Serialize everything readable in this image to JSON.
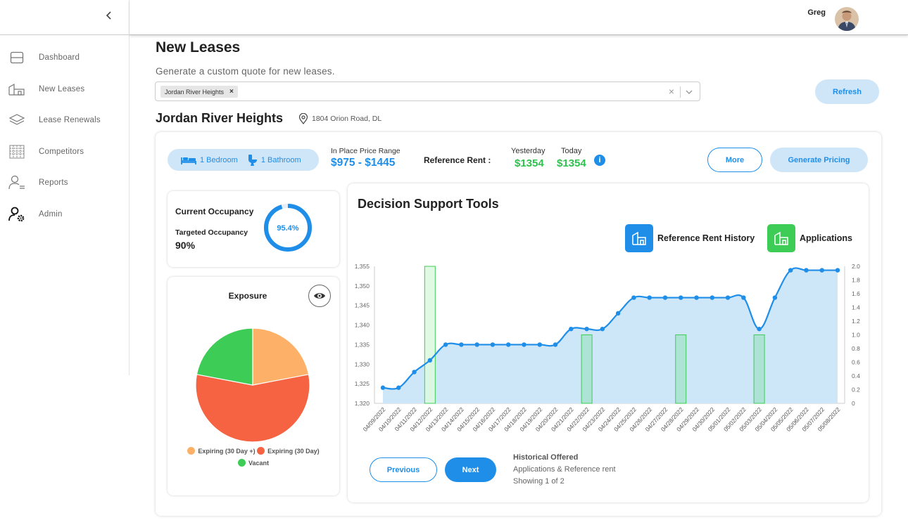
{
  "user": {
    "name": "Greg"
  },
  "sidebar": {
    "items": [
      {
        "label": "Dashboard",
        "icon": "dashboard-icon"
      },
      {
        "label": "New Leases",
        "icon": "building-icon"
      },
      {
        "label": "Lease Renewals",
        "icon": "layers-icon"
      },
      {
        "label": "Competitors",
        "icon": "grid-building-icon"
      },
      {
        "label": "Reports",
        "icon": "user-report-icon"
      },
      {
        "label": "Admin",
        "icon": "user-gear-icon"
      }
    ]
  },
  "header": {
    "title": "New Leases",
    "subtitle": "Generate a custom quote for new leases.",
    "selected_property": "Jordan River Heights",
    "refresh_label": "Refresh"
  },
  "property": {
    "name": "Jordan River Heights",
    "address": "1804 Orion Road, DL"
  },
  "summary": {
    "bedroom_label": "1 Bedroom",
    "bathroom_label": "1 Bathroom",
    "in_place_label": "In Place Price Range",
    "in_place_value": "$975 - $1445",
    "reference_rent_label": "Reference Rent :",
    "yesterday_label": "Yesterday",
    "today_label": "Today",
    "yesterday_value": "$1354",
    "today_value": "$1354",
    "info_glyph": "i",
    "more_label": "More",
    "generate_label": "Generate Pricing"
  },
  "occupancy": {
    "title": "Current Occupancy",
    "targeted_label": "Targeted Occupancy",
    "targeted_value": "90%",
    "current_value": "95.4%",
    "current_fraction": 0.954
  },
  "exposure": {
    "title": "Exposure",
    "legend": [
      {
        "label": "Expiring (30 Day +)",
        "color": "#fdb168"
      },
      {
        "label": "Expiring (30 Day)",
        "color": "#f56342"
      },
      {
        "label": "Vacant",
        "color": "#3dcc55"
      }
    ],
    "slices": [
      {
        "label": "Expiring (30 Day +)",
        "value": 22,
        "color": "#fdb168"
      },
      {
        "label": "Expiring (30 Day)",
        "value": 56,
        "color": "#f56342"
      },
      {
        "label": "Vacant",
        "value": 22,
        "color": "#3dcc55"
      }
    ]
  },
  "decision": {
    "title": "Decision Support Tools",
    "legend_rent": "Reference Rent History",
    "legend_apps": "Applications",
    "prev_label": "Previous",
    "next_label": "Next",
    "hist_title": "Historical Offered",
    "hist_sub": "Applications & Reference rent",
    "hist_page": "Showing 1 of 2"
  },
  "chart_data": {
    "type": "area",
    "title": "Decision Support Tools",
    "x": [
      "04/09/2022",
      "04/10/2022",
      "04/11/2022",
      "04/12/2022",
      "04/13/2022",
      "04/14/2022",
      "04/15/2022",
      "04/16/2022",
      "04/17/2022",
      "04/18/2022",
      "04/19/2022",
      "04/20/2022",
      "04/21/2022",
      "04/22/2022",
      "04/23/2022",
      "04/24/2022",
      "04/25/2022",
      "04/26/2022",
      "04/27/2022",
      "04/28/2022",
      "04/29/2022",
      "04/30/2022",
      "05/01/2022",
      "05/02/2022",
      "05/03/2022",
      "05/04/2022",
      "05/05/2022",
      "05/06/2022",
      "05/07/2022",
      "05/08/2022"
    ],
    "series": [
      {
        "name": "Reference Rent History",
        "axis": "left",
        "color": "#1f8ee8",
        "values": [
          1324,
          1324,
          1328,
          1331,
          1335,
          1335,
          1335,
          1335,
          1335,
          1335,
          1335,
          1335,
          1339,
          1339,
          1339,
          1343,
          1347,
          1347,
          1347,
          1347,
          1347,
          1347,
          1347,
          1347,
          1339,
          1347,
          1354,
          1354,
          1354,
          1354
        ]
      },
      {
        "name": "Applications",
        "axis": "right",
        "color": "#3dcc55",
        "values": [
          0,
          0,
          0,
          2,
          0,
          0,
          0,
          0,
          0,
          0,
          0,
          0,
          0,
          1,
          0,
          0,
          0,
          0,
          0,
          1,
          0,
          0,
          0,
          0,
          1,
          0,
          0,
          0,
          0,
          0
        ]
      }
    ],
    "ylim_left": [
      1320,
      1355
    ],
    "yticks_left": [
      "1,320",
      "1,325",
      "1,330",
      "1,335",
      "1,340",
      "1,345",
      "1,350",
      "1,355"
    ],
    "ylim_right": [
      0,
      2
    ],
    "yticks_right": [
      "0",
      "0.2",
      "0.4",
      "0.6",
      "0.8",
      "1.0",
      "1.2",
      "1.4",
      "1.6",
      "1.8",
      "2.0"
    ]
  }
}
